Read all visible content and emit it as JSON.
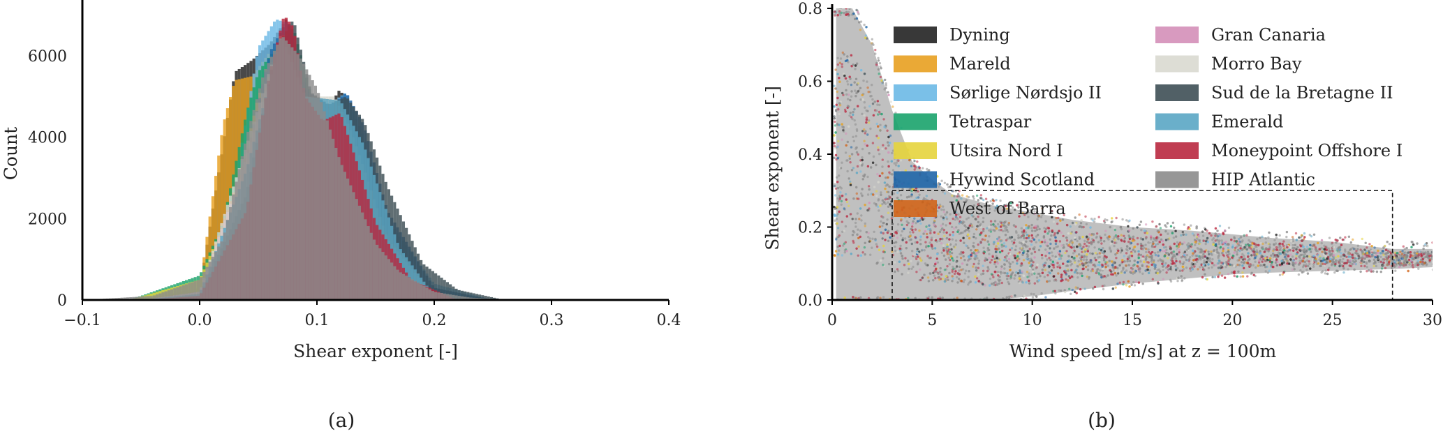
{
  "figure": {
    "panel_a_label": "(a)",
    "panel_b_label": "(b)"
  },
  "chart_data": [
    {
      "type": "bar",
      "panel": "(a)",
      "histogram": true,
      "xlabel": "Shear exponent [-]",
      "ylabel": "Count",
      "xlim": [
        -0.1,
        0.4
      ],
      "ylim": [
        0,
        7200
      ],
      "xticks": [
        -0.1,
        0.0,
        0.1,
        0.2,
        0.3,
        0.4
      ],
      "xtick_labels": [
        "−0.1",
        "0.0",
        "0.1",
        "0.2",
        "0.3",
        "0.4"
      ],
      "yticks": [
        0,
        2000,
        4000,
        6000
      ],
      "ytick_labels": [
        "0",
        "2000",
        "4000",
        "6000"
      ],
      "grid": false,
      "series": [
        {
          "site": "Dyning",
          "color": "#222222",
          "x": [
            -0.05,
            0.0,
            0.02,
            0.03,
            0.045,
            0.06,
            0.075,
            0.09,
            0.105,
            0.12,
            0.135,
            0.15,
            0.17,
            0.2,
            0.25
          ],
          "y": [
            0,
            250,
            3800,
            5600,
            5900,
            6300,
            6950,
            4900,
            4500,
            5200,
            3900,
            2200,
            900,
            300,
            0
          ]
        },
        {
          "site": "Mareld",
          "color": "#e8a020",
          "x": [
            -0.05,
            0.0,
            0.02,
            0.03,
            0.045,
            0.06,
            0.075,
            0.09,
            0.105,
            0.12,
            0.15,
            0.2
          ],
          "y": [
            0,
            300,
            4300,
            5400,
            5500,
            6100,
            6800,
            4800,
            4300,
            4600,
            1800,
            100
          ]
        },
        {
          "site": "Sørlige Nordsjo II",
          "color": "#6cb9e6",
          "x": [
            -0.05,
            0.0,
            0.03,
            0.05,
            0.065,
            0.075,
            0.09,
            0.105,
            0.125,
            0.14,
            0.16,
            0.2,
            0.25
          ],
          "y": [
            0,
            150,
            2800,
            6200,
            6900,
            6800,
            5100,
            4700,
            5100,
            4000,
            2000,
            400,
            0
          ]
        },
        {
          "site": "Tetraspar",
          "color": "#1aa36b",
          "x": [
            -0.06,
            0.0,
            0.02,
            0.04,
            0.05,
            0.065,
            0.08,
            0.1,
            0.12,
            0.15,
            0.2
          ],
          "y": [
            0,
            600,
            1900,
            4600,
            5600,
            6200,
            6700,
            4500,
            4400,
            1500,
            100
          ]
        },
        {
          "site": "Utsira Nord I",
          "color": "#e6d43c",
          "x": [
            -0.06,
            0.0,
            0.03,
            0.05,
            0.07,
            0.09,
            0.11,
            0.13,
            0.16,
            0.2
          ],
          "y": [
            0,
            500,
            2500,
            5000,
            6500,
            5000,
            4500,
            4300,
            1500,
            100
          ]
        },
        {
          "site": "Hywind Scotland",
          "color": "#1f66a8",
          "x": [
            -0.05,
            0.0,
            0.04,
            0.06,
            0.075,
            0.09,
            0.11,
            0.125,
            0.14,
            0.16,
            0.2,
            0.25
          ],
          "y": [
            0,
            100,
            3500,
            6100,
            6900,
            5200,
            4700,
            5100,
            4300,
            2200,
            300,
            0
          ]
        },
        {
          "site": "West of Barra",
          "color": "#d2651a",
          "x": [
            -0.05,
            0.0,
            0.04,
            0.07,
            0.09,
            0.12,
            0.15,
            0.2
          ],
          "y": [
            0,
            200,
            3600,
            6600,
            5000,
            4900,
            2000,
            100
          ]
        },
        {
          "site": "Gran Canaria",
          "color": "#d48fb8",
          "x": [
            -0.05,
            0.0,
            0.04,
            0.07,
            0.09,
            0.12,
            0.15,
            0.2
          ],
          "y": [
            0,
            200,
            3500,
            6500,
            4900,
            4600,
            1800,
            100
          ]
        },
        {
          "site": "Morro Bay",
          "color": "#d9d9d0",
          "x": [
            -0.05,
            0.0,
            0.04,
            0.07,
            0.09,
            0.115,
            0.13,
            0.16,
            0.2
          ],
          "y": [
            0,
            200,
            3800,
            6600,
            5000,
            5000,
            4100,
            1500,
            100
          ]
        },
        {
          "site": "Sud de la Bretagne II",
          "color": "#3e4f55",
          "x": [
            -0.05,
            0.0,
            0.04,
            0.065,
            0.08,
            0.095,
            0.11,
            0.125,
            0.14,
            0.16,
            0.19,
            0.22,
            0.26
          ],
          "y": [
            0,
            100,
            2600,
            6200,
            6900,
            5100,
            4800,
            5000,
            4400,
            2800,
            900,
            250,
            0
          ]
        },
        {
          "site": "Emerald",
          "color": "#5aa6c4",
          "x": [
            -0.05,
            0.0,
            0.04,
            0.07,
            0.09,
            0.12,
            0.14,
            0.17,
            0.2
          ],
          "y": [
            0,
            150,
            3200,
            6500,
            5000,
            4900,
            3800,
            1300,
            100
          ]
        },
        {
          "site": "Moneypoint Offshore I",
          "color": "#b9283f",
          "x": [
            -0.05,
            0.0,
            0.04,
            0.06,
            0.072,
            0.08,
            0.09,
            0.105,
            0.12,
            0.135,
            0.15,
            0.18,
            0.22
          ],
          "y": [
            0,
            100,
            2200,
            5600,
            7000,
            6700,
            5000,
            4400,
            4600,
            3300,
            1900,
            500,
            0
          ]
        },
        {
          "site": "HIP Atlantic",
          "color": "#8c8c8c",
          "x": [
            -0.1,
            -0.04,
            0.0,
            0.02,
            0.04,
            0.055,
            0.07,
            0.085,
            0.1,
            0.11,
            0.12,
            0.135,
            0.15,
            0.17,
            0.2,
            0.23,
            0.26,
            0.3
          ],
          "y": [
            0,
            100,
            500,
            1500,
            4000,
            5600,
            6500,
            6000,
            5200,
            4300,
            3400,
            2400,
            1400,
            700,
            200,
            60,
            10,
            0
          ]
        }
      ]
    },
    {
      "type": "scatter",
      "panel": "(b)",
      "xlabel": "Wind speed [m/s] at z = 100m",
      "ylabel": "Shear exponent [-]",
      "xlim": [
        0,
        30
      ],
      "ylim": [
        0,
        0.8
      ],
      "xticks": [
        0,
        5,
        10,
        15,
        20,
        25,
        30
      ],
      "xtick_labels": [
        "0",
        "5",
        "10",
        "15",
        "20",
        "25",
        "30"
      ],
      "yticks": [
        0.0,
        0.2,
        0.4,
        0.6,
        0.8
      ],
      "ytick_labels": [
        "0.0",
        "0.2",
        "0.4",
        "0.6",
        "0.8"
      ],
      "grid": false,
      "legend_placement": "top",
      "dashed_box": {
        "x": [
          3,
          28
        ],
        "y": [
          0,
          0.3
        ]
      },
      "series": [
        {
          "name": "Dyning",
          "color": "#222222"
        },
        {
          "name": "Mareld",
          "color": "#e8a020"
        },
        {
          "name": "Sørlige Nørdsjo II",
          "color": "#6cb9e6"
        },
        {
          "name": "Tetraspar",
          "color": "#1aa36b"
        },
        {
          "name": "Utsira Nord I",
          "color": "#e6d43c"
        },
        {
          "name": "Hywind Scotland",
          "color": "#1f66a8"
        },
        {
          "name": "West of Barra",
          "color": "#d2651a"
        },
        {
          "name": "Gran Canaria",
          "color": "#d48fb8"
        },
        {
          "name": "Morro Bay",
          "color": "#d9d9d0"
        },
        {
          "name": "Sud de la Bretagne II",
          "color": "#3e4f55"
        },
        {
          "name": "Emerald",
          "color": "#5aa6c4"
        },
        {
          "name": "Moneypoint Offshore I",
          "color": "#b9283f"
        },
        {
          "name": "HIP Atlantic",
          "color": "#8c8c8c"
        }
      ],
      "envelope": {
        "x": [
          0.2,
          1,
          2,
          3,
          4,
          5,
          6,
          8,
          10,
          12,
          15,
          18,
          20,
          22,
          25,
          28,
          30
        ],
        "upper": [
          0.8,
          0.8,
          0.7,
          0.52,
          0.38,
          0.33,
          0.29,
          0.26,
          0.24,
          0.22,
          0.2,
          0.19,
          0.18,
          0.17,
          0.16,
          0.14,
          0.14
        ],
        "lower": [
          0.0,
          0.0,
          0.0,
          0.0,
          0.0,
          0.0,
          0.0,
          0.0,
          0.01,
          0.025,
          0.045,
          0.06,
          0.07,
          0.075,
          0.08,
          0.085,
          0.09
        ]
      }
    }
  ]
}
